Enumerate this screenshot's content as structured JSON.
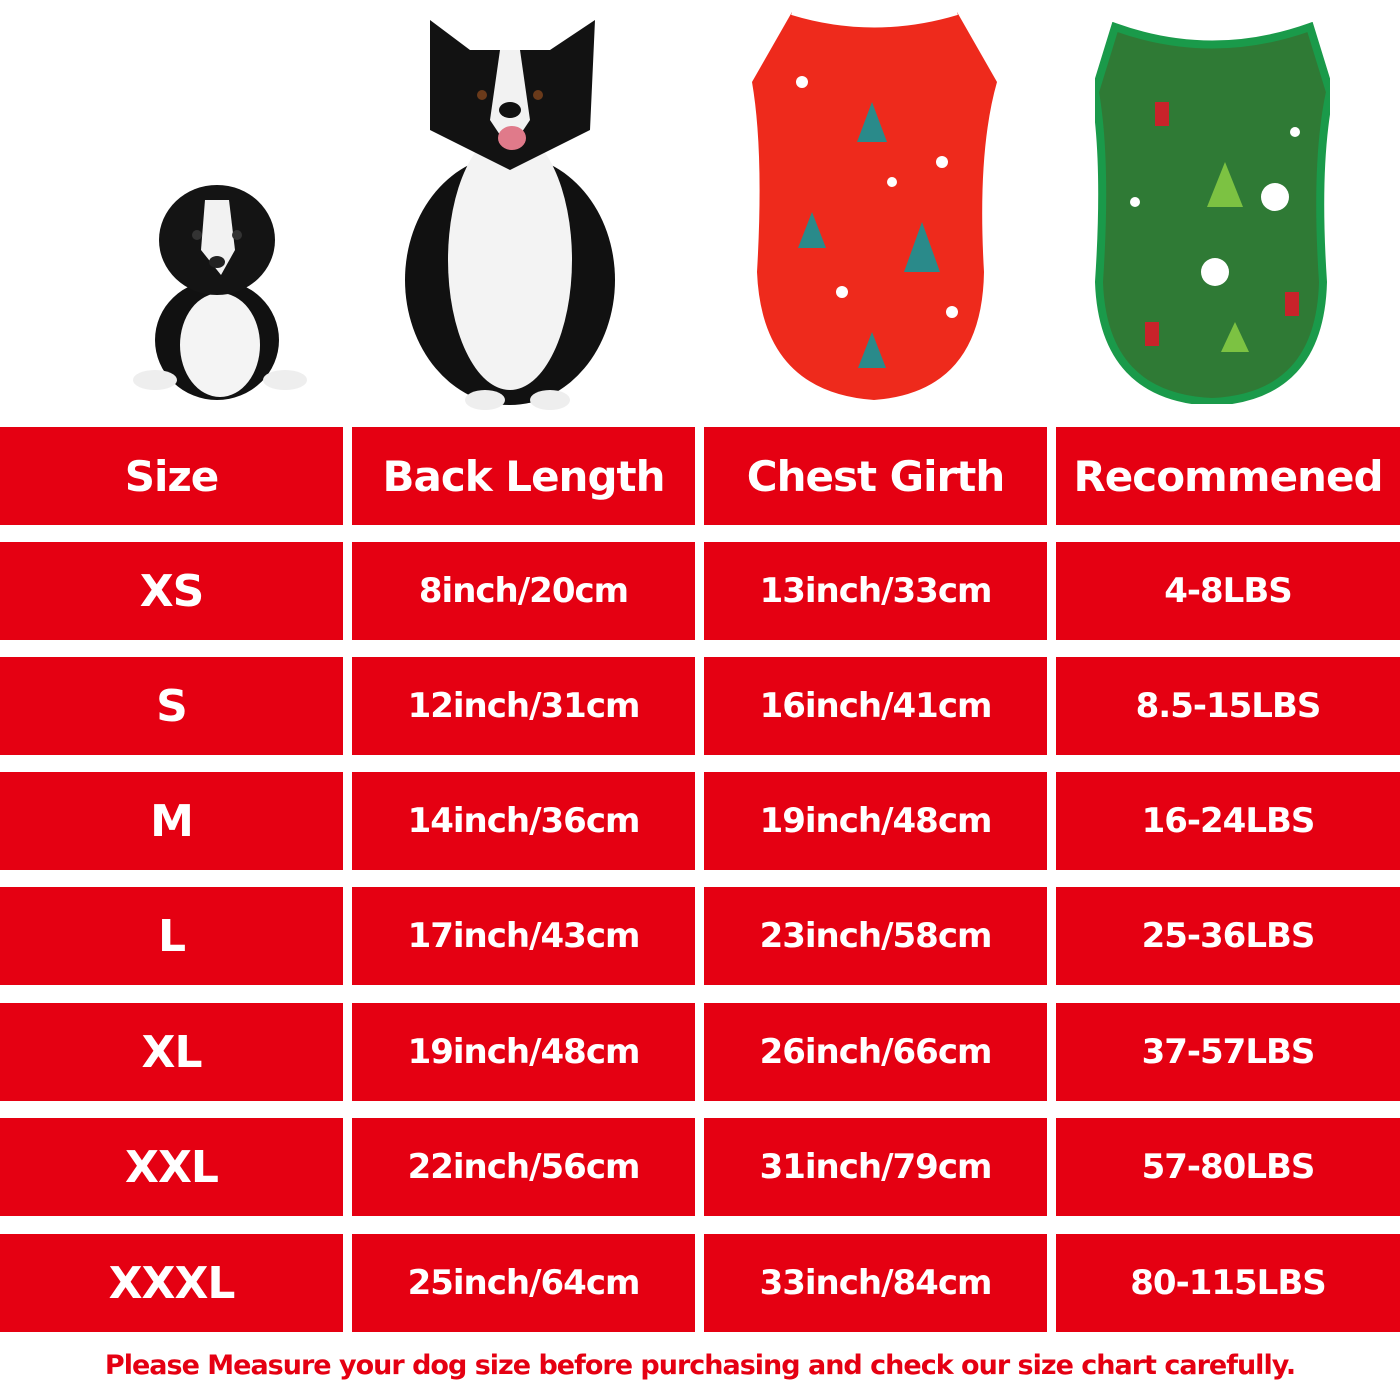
{
  "images": [
    {
      "name": "puppy-photo",
      "description_icon": "small-puppy"
    },
    {
      "name": "adult-dog-photo",
      "description_icon": "adult-dog"
    },
    {
      "name": "red-shirt-photo",
      "color": "#ee2a1c"
    },
    {
      "name": "green-shirt-photo",
      "color": "#2f7a35"
    }
  ],
  "colors": {
    "cell_bg": "#e50012",
    "cell_text": "#ffffff",
    "note_text": "#e50012"
  },
  "table": {
    "headers": [
      "Size",
      "Back Length",
      "Chest Girth",
      "Recommened"
    ],
    "rows": [
      [
        "XS",
        "8inch/20cm",
        "13inch/33cm",
        "4-8LBS"
      ],
      [
        "S",
        "12inch/31cm",
        "16inch/41cm",
        "8.5-15LBS"
      ],
      [
        "M",
        "14inch/36cm",
        "19inch/48cm",
        "16-24LBS"
      ],
      [
        "L",
        "17inch/43cm",
        "23inch/58cm",
        "25-36LBS"
      ],
      [
        "XL",
        "19inch/48cm",
        "26inch/66cm",
        "37-57LBS"
      ],
      [
        "XXL",
        "22inch/56cm",
        "31inch/79cm",
        "57-80LBS"
      ],
      [
        "XXXL",
        "25inch/64cm",
        "33inch/84cm",
        "80-115LBS"
      ]
    ]
  },
  "note": "Please Measure your dog size before purchasing and check our size chart carefully."
}
